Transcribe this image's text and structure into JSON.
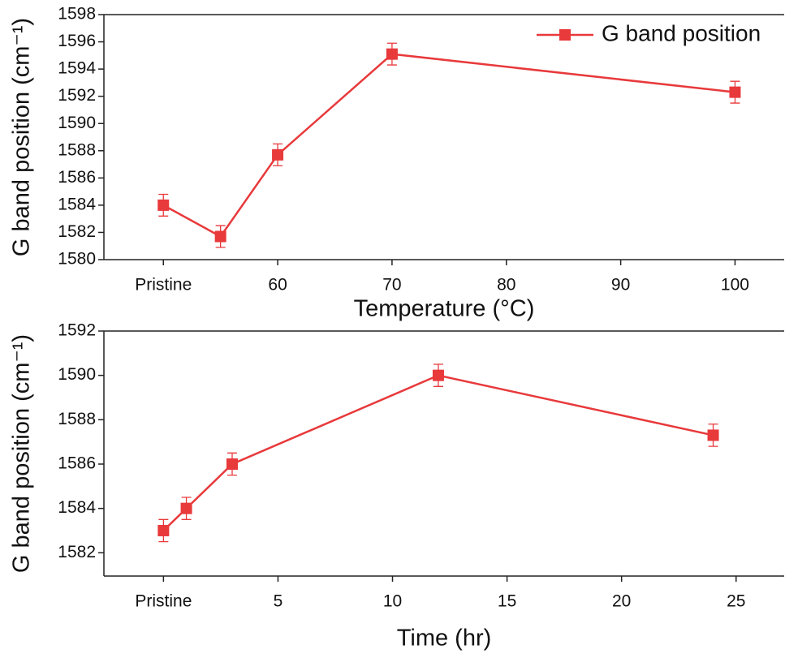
{
  "chart_data": [
    {
      "type": "line",
      "x_label": "Temperature (°C)",
      "y_label": "G band position (cm⁻¹)",
      "x": [
        50,
        55,
        60,
        70,
        100
      ],
      "series": [
        {
          "name": "G band position",
          "color": "#e8393b",
          "values": [
            1584.0,
            1581.7,
            1587.7,
            1595.1,
            1592.3
          ],
          "errors": [
            0.8,
            0.8,
            0.8,
            0.8,
            0.8
          ]
        }
      ],
      "xlim": [
        44.8,
        104.3
      ],
      "xticks": [
        {
          "value": 50,
          "label": "Pristine"
        },
        60,
        70,
        80,
        90,
        100
      ],
      "ylim": [
        1580,
        1598
      ],
      "yticks": [
        1580,
        1582,
        1584,
        1586,
        1588,
        1590,
        1592,
        1594,
        1596,
        1598
      ],
      "legend": "upper right"
    },
    {
      "type": "line",
      "x_label": "Time (hr)",
      "y_label": "G band position (cm⁻¹)",
      "x": [
        0,
        1,
        3,
        12,
        24
      ],
      "series": [
        {
          "color": "#e8393b",
          "values": [
            1583,
            1584,
            1586,
            1590,
            1587.3
          ],
          "errors": [
            0.5,
            0.5,
            0.5,
            0.5,
            0.5
          ]
        }
      ],
      "xlim": [
        -2.6,
        27.1
      ],
      "xticks": [
        {
          "value": 0,
          "label": "Pristine"
        },
        5,
        10,
        15,
        20,
        25
      ],
      "ylim": [
        1580.95,
        1592
      ],
      "yticks": [
        1582,
        1584,
        1586,
        1588,
        1590,
        1592
      ]
    }
  ]
}
